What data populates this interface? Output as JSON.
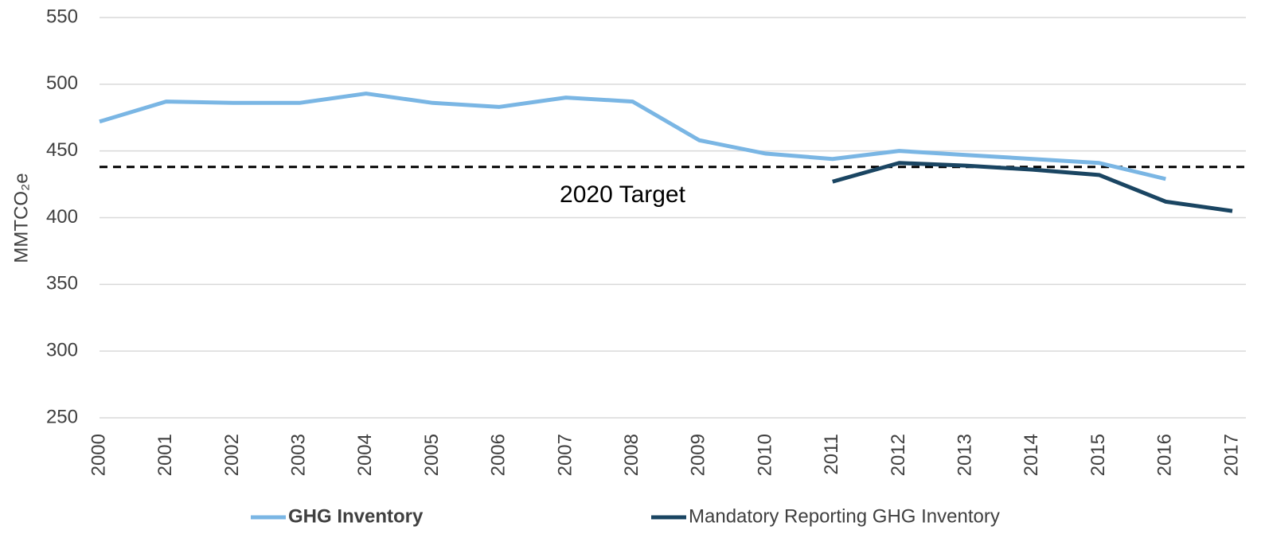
{
  "chart_data": {
    "type": "line",
    "y_label": "MMTCO₂e",
    "categories": [
      "2000",
      "2001",
      "2002",
      "2003",
      "2004",
      "2005",
      "2006",
      "2007",
      "2008",
      "2009",
      "2010",
      "2011",
      "2012",
      "2013",
      "2014",
      "2015",
      "2016",
      "2017"
    ],
    "series": [
      {
        "name": "GHG Inventory",
        "color": "#7ab6e4",
        "values": [
          472,
          487,
          486,
          486,
          493,
          486,
          483,
          490,
          487,
          458,
          448,
          444,
          450,
          447,
          444,
          441,
          429,
          null
        ]
      },
      {
        "name": "Mandatory Reporting GHG Inventory",
        "color": "#1a4562",
        "values": [
          null,
          null,
          null,
          null,
          null,
          null,
          null,
          null,
          null,
          null,
          null,
          427,
          441,
          439,
          436,
          432,
          412,
          405
        ]
      }
    ],
    "target": {
      "value": 438,
      "label": "2020 Target"
    },
    "ylim": [
      250,
      550
    ],
    "yticks": [
      250,
      300,
      350,
      400,
      450,
      500,
      550
    ],
    "grid": true,
    "legend": "bottom"
  }
}
